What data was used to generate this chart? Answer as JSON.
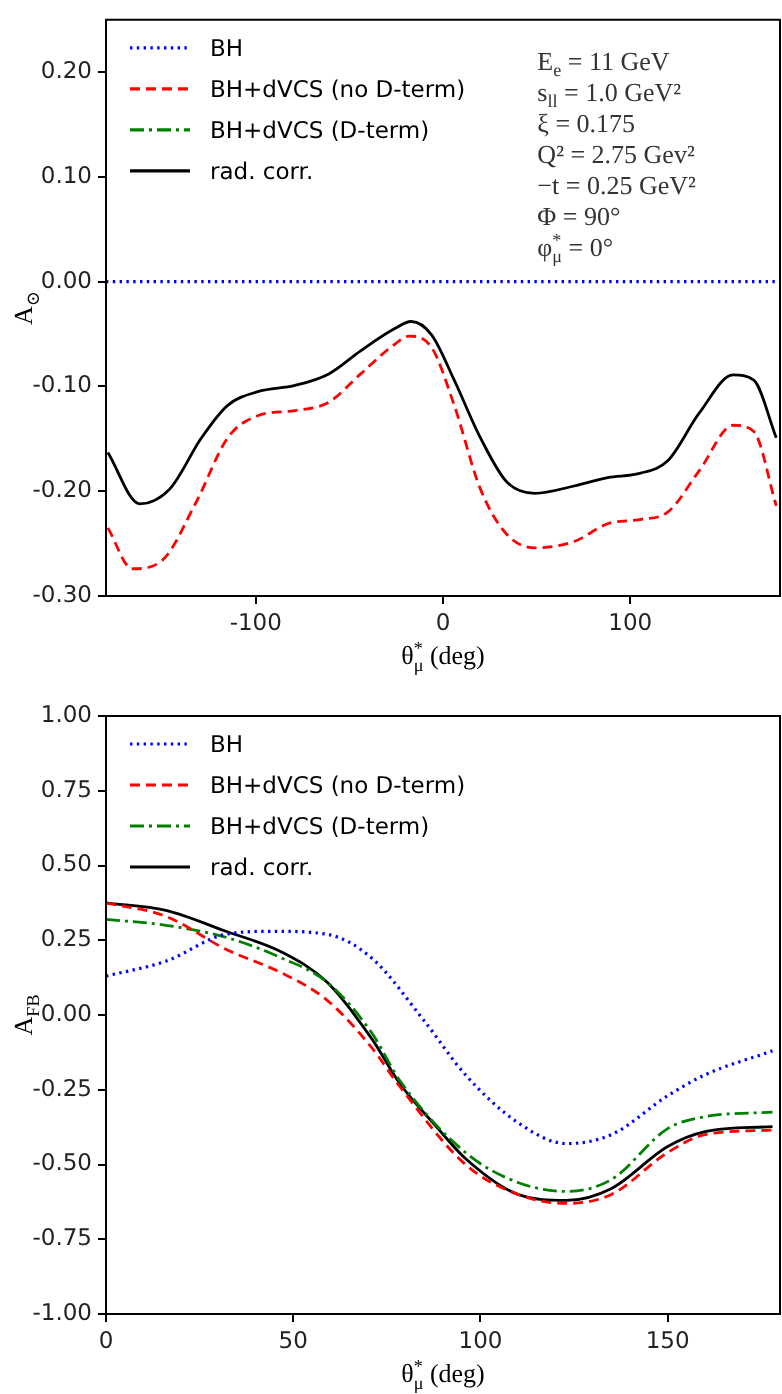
{
  "chart_data": [
    {
      "type": "line",
      "xlabel": "θ$^{*}$$_{μ}$ (deg)",
      "ylabel": "A$_{⊙}$",
      "xlim": [
        -180,
        180
      ],
      "ylim": [
        -0.3,
        0.25
      ],
      "xticks": [
        -100,
        0,
        100
      ],
      "yticks": [
        {
          "value": -0.3,
          "label": "-0.30"
        },
        {
          "value": -0.2,
          "label": "-0.20"
        },
        {
          "value": -0.1,
          "label": "-0.10"
        },
        {
          "value": 0,
          "label": "0.00"
        },
        {
          "value": 0.1,
          "label": "0.10"
        },
        {
          "value": 0.2,
          "label": "0.20"
        }
      ],
      "grid": false,
      "legend": "top left",
      "marker": "none",
      "annotations": [
        "E$_{e}$ = 11 GeV",
        "s$_{ll}$ = 1.0 GeV²",
        "ξ = 0.175",
        "Q² = 2.75 Gev²",
        "−t = 0.25 GeV²",
        "Φ = 90°",
        "φ$^{*}$$_{μ}$ = 0°"
      ],
      "series": [
        {
          "name": "BH",
          "color": "#0000ff",
          "line_style": "dotted",
          "x": [
            -180,
            180
          ],
          "values": [
            0,
            0
          ]
        },
        {
          "name": "BH+dVCS (no D-term)",
          "color": "#ff0000",
          "line_style": "dashed",
          "x": [
            -179,
            -166,
            -150,
            -132,
            -115,
            -99,
            -79,
            -61,
            -44,
            -26,
            -18,
            -6,
            6,
            20,
            34,
            49,
            70,
            88,
            105,
            120,
            137,
            155,
            166,
            178
          ],
          "values": [
            -0.235,
            -0.274,
            -0.266,
            -0.211,
            -0.149,
            -0.128,
            -0.123,
            -0.115,
            -0.088,
            -0.06,
            -0.052,
            -0.063,
            -0.118,
            -0.198,
            -0.241,
            -0.254,
            -0.248,
            -0.231,
            -0.227,
            -0.22,
            -0.18,
            -0.137,
            -0.143,
            -0.214
          ]
        },
        {
          "name": "BH+dVCS (D-term)",
          "color": "#008000",
          "line_style": "dashdot"
        },
        {
          "name": "rad. corr.",
          "color": "#000000",
          "line_style": "solid",
          "x": [
            -179,
            -162,
            -146,
            -129,
            -115,
            -99,
            -79,
            -61,
            -44,
            -26,
            -17,
            -6,
            6,
            20,
            34,
            49,
            70,
            88,
            105,
            120,
            137,
            155,
            166,
            178
          ],
          "values": [
            -0.163,
            -0.212,
            -0.198,
            -0.149,
            -0.118,
            -0.105,
            -0.099,
            -0.088,
            -0.066,
            -0.045,
            -0.038,
            -0.051,
            -0.094,
            -0.149,
            -0.191,
            -0.202,
            -0.195,
            -0.187,
            -0.183,
            -0.171,
            -0.125,
            -0.089,
            -0.094,
            -0.149
          ]
        }
      ]
    },
    {
      "type": "line",
      "xlabel": "θ$^{*}$$_{μ}$ (deg)",
      "ylabel": "A$_{FB}$",
      "xlim": [
        0,
        180
      ],
      "ylim": [
        -1,
        1
      ],
      "xticks": [
        0,
        50,
        100,
        150
      ],
      "yticks": [
        {
          "value": -1,
          "label": "-1.00"
        },
        {
          "value": -0.75,
          "label": "-0.75"
        },
        {
          "value": -0.5,
          "label": "-0.50"
        },
        {
          "value": -0.25,
          "label": "-0.25"
        },
        {
          "value": 0,
          "label": "0.00"
        },
        {
          "value": 0.25,
          "label": "0.25"
        },
        {
          "value": 0.5,
          "label": "0.50"
        },
        {
          "value": 0.75,
          "label": "0.75"
        },
        {
          "value": 1,
          "label": "1.00"
        }
      ],
      "grid": false,
      "legend": "top left",
      "marker": "none",
      "series": [
        {
          "name": "BH",
          "color": "#0000ff",
          "line_style": "dotted",
          "x": [
            0,
            16,
            32,
            45,
            59,
            71,
            85,
            96,
            110,
            123,
            135,
            150,
            160,
            178
          ],
          "values": [
            0.13,
            0.18,
            0.27,
            0.28,
            0.27,
            0.19,
            -0.02,
            -0.2,
            -0.36,
            -0.43,
            -0.4,
            -0.27,
            -0.2,
            -0.12
          ]
        },
        {
          "name": "BH+dVCS (no D-term)",
          "color": "#ff0000",
          "line_style": "dashed",
          "x": [
            0,
            16,
            32,
            47,
            59,
            71,
            78.5,
            96,
            110,
            123,
            135,
            150,
            160,
            178
          ],
          "values": [
            0.375,
            0.33,
            0.22,
            0.14,
            0.05,
            -0.11,
            -0.24,
            -0.5,
            -0.6,
            -0.63,
            -0.6,
            -0.46,
            -0.4,
            -0.385
          ]
        },
        {
          "name": "BH+dVCS (D-term)",
          "color": "#008000",
          "line_style": "dashdot",
          "x": [
            0,
            16,
            32,
            47,
            59,
            71,
            78.5,
            96,
            110,
            123,
            135,
            150,
            160,
            178
          ],
          "values": [
            0.32,
            0.3,
            0.26,
            0.19,
            0.11,
            -0.06,
            -0.22,
            -0.46,
            -0.56,
            -0.59,
            -0.55,
            -0.38,
            -0.34,
            -0.325
          ]
        },
        {
          "name": "rad. corr.",
          "color": "#000000",
          "line_style": "solid",
          "x": [
            0,
            16,
            32,
            47,
            59,
            71,
            78.5,
            88,
            96,
            110,
            123,
            135,
            150,
            160,
            178
          ],
          "values": [
            0.375,
            0.35,
            0.28,
            0.21,
            0.11,
            -0.08,
            -0.23,
            -0.37,
            -0.48,
            -0.6,
            -0.62,
            -0.58,
            -0.44,
            -0.39,
            -0.373
          ]
        }
      ]
    }
  ]
}
